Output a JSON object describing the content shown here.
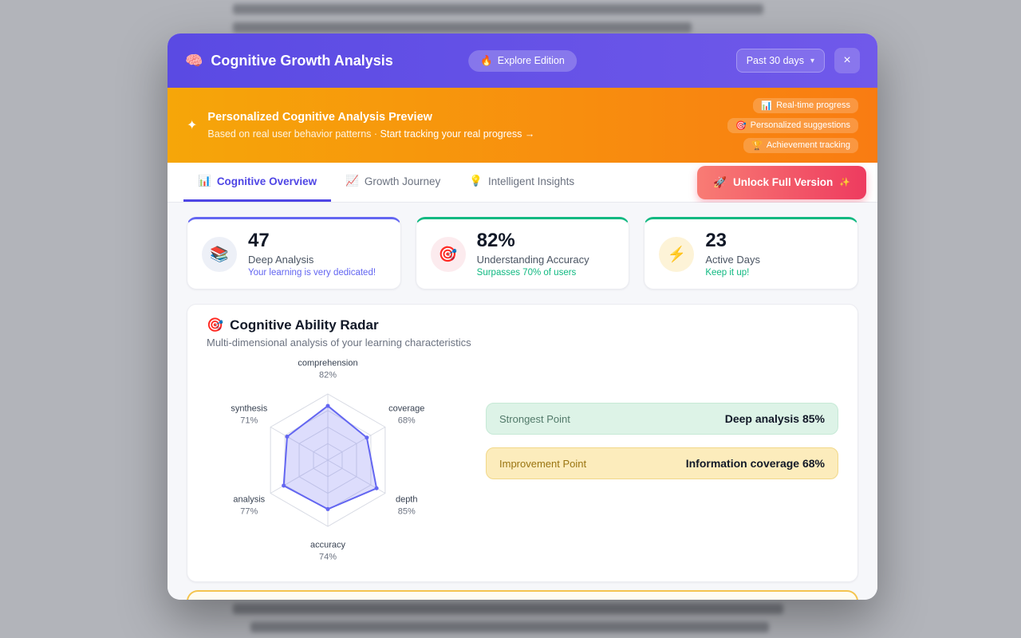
{
  "modal": {
    "header": {
      "icon": "🧠",
      "title": "Cognitive Growth Analysis",
      "badge_icon": "🔥",
      "badge_label": "Explore Edition",
      "range_selector": "Past 30 days",
      "range_chevron": "▾",
      "close_icon": "×"
    },
    "banner": {
      "icon": "✦",
      "title": "Personalized Cognitive Analysis Preview",
      "subtitle": "Based on real user behavior patterns · ",
      "link": "Start tracking your real progress →",
      "pills": [
        {
          "icon": "📊",
          "label": "Real-time progress"
        },
        {
          "icon": "🎯",
          "label": "Personalized suggestions"
        },
        {
          "icon": "🏆",
          "label": "Achievement tracking"
        }
      ]
    },
    "tabs": [
      {
        "icon": "📊",
        "label": "Cognitive Overview"
      },
      {
        "icon": "📈",
        "label": "Growth Journey"
      },
      {
        "icon": "💡",
        "label": "Intelligent Insights"
      }
    ],
    "unlock": {
      "icon": "🚀",
      "label": "Unlock Full Version",
      "suffix": "✨"
    },
    "stats": [
      {
        "icon": "📚",
        "value": "47",
        "label": "Deep Analysis",
        "note": "Your learning is very dedicated!",
        "accent": "#6366f1",
        "note_color": "#6366f1",
        "icon_bg": "#edf0f7"
      },
      {
        "icon": "🎯",
        "value": "82%",
        "label": "Understanding Accuracy",
        "note": "Surpasses 70% of users",
        "accent": "#10b981",
        "note_color": "#10b981",
        "icon_bg": "#fcebee"
      },
      {
        "icon": "⚡",
        "value": "23",
        "label": "Active Days",
        "note": "Keep it up!",
        "accent": "#10b981",
        "note_color": "#10b981",
        "icon_bg": "#fdf3d7"
      }
    ],
    "radar_card": {
      "title_icon": "🎯",
      "title": "Cognitive Ability Radar",
      "subtitle": "Multi-dimensional analysis of your learning characteristics",
      "strongest_label": "Strongest Point",
      "strongest_value": "Deep analysis 85%",
      "improvement_label": "Improvement Point",
      "improvement_value": "Information coverage 68%"
    }
  },
  "chart_data": {
    "type": "radar",
    "title": "Cognitive Ability Radar",
    "categories": [
      "comprehension",
      "coverage",
      "depth",
      "accuracy",
      "analysis",
      "synthesis"
    ],
    "values": [
      82,
      68,
      85,
      74,
      77,
      71
    ],
    "max": 100,
    "levels": 4,
    "grid": "on",
    "stroke": "#6366f1",
    "fill": "rgba(99,102,241,0.22)"
  }
}
